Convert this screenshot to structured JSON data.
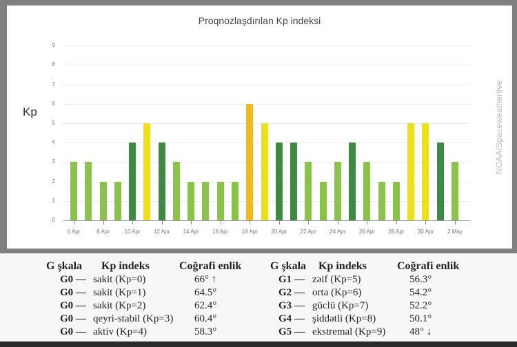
{
  "chart_data": {
    "type": "bar",
    "title": "Proqnozlaşdırılan Kp indeksi",
    "xlabel": "",
    "ylabel": "Kp",
    "ylim": [
      0,
      9
    ],
    "yticks": [
      "0",
      "1",
      "2",
      "3",
      "4",
      "5",
      "6",
      "7",
      "8",
      "9"
    ],
    "grid": true,
    "legend": "none",
    "source_credit": "NOAA/Spaceweatherlive",
    "categories": [
      "6 Apr",
      "7 Apr",
      "8 Apr",
      "9 Apr",
      "10 Apr",
      "11 Apr",
      "12 Apr",
      "13 Apr",
      "14 Apr",
      "15 Apr",
      "16 Apr",
      "17 Apr",
      "18 Apr",
      "19 Apr",
      "20 Apr",
      "21 Apr",
      "22 Apr",
      "23 Apr",
      "24 Apr",
      "25 Apr",
      "26 Apr",
      "27 Apr",
      "28 Apr",
      "29 Apr",
      "30 Apr",
      "1 May",
      "2 May"
    ],
    "xtick_labels": [
      "6 Apr",
      "8 Apr",
      "10 Apr",
      "12 Apr",
      "14 Apr",
      "16 Apr",
      "18 Apr",
      "20 Apr",
      "22 Apr",
      "24 Apr",
      "26 Apr",
      "28 Apr",
      "30 Apr",
      "2 May"
    ],
    "values": [
      3,
      3,
      2,
      2,
      4,
      5,
      4,
      3,
      2,
      2,
      2,
      2,
      6,
      5,
      4,
      4,
      3,
      2,
      3,
      4,
      3,
      2,
      2,
      5,
      5,
      4,
      3
    ],
    "color_scale": {
      "0-3": "#8bc34a",
      "4": "#3f8a42",
      "5": "#eedf1c",
      "6": "#f5b918"
    }
  },
  "legend_table": {
    "headers": [
      "G şkala",
      "Kp indeks",
      "Coğrafi enlik"
    ],
    "left": [
      {
        "g": "G0 —",
        "kp": "sakit (Kp=0)",
        "lat": "66° ↑"
      },
      {
        "g": "G0 —",
        "kp": "sakit (Kp=1)",
        "lat": "64.5°"
      },
      {
        "g": "G0 —",
        "kp": "sakit (Kp=2)",
        "lat": "62.4°"
      },
      {
        "g": "G0 —",
        "kp": "qeyri-stabil (Kp=3)",
        "lat": "60.4°"
      },
      {
        "g": "G0 —",
        "kp": "aktiv (Kp=4)",
        "lat": "58.3°"
      }
    ],
    "right": [
      {
        "g": "G1 —",
        "kp": "zəif (Kp=5)",
        "lat": "56.3°"
      },
      {
        "g": "G2 —",
        "kp": "orta (Kp=6)",
        "lat": "54.2°"
      },
      {
        "g": "G3 —",
        "kp": "güclü (Kp=7)",
        "lat": "52.2°"
      },
      {
        "g": "G4 —",
        "kp": "şiddətli (Kp=8)",
        "lat": "50.1°"
      },
      {
        "g": "G5 —",
        "kp": "ekstremal (Kp=9)",
        "lat": "48° ↓"
      }
    ]
  }
}
